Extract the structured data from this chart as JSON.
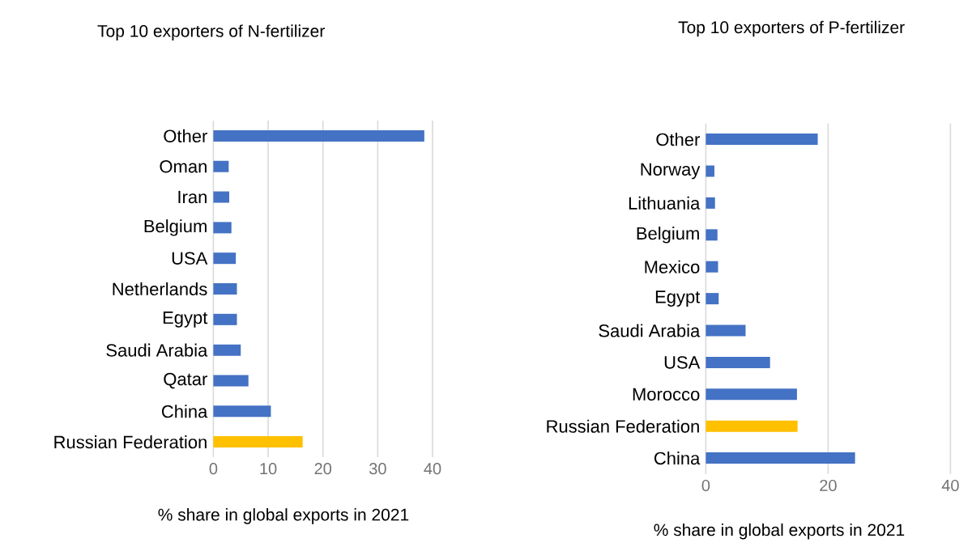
{
  "chart_data": [
    {
      "type": "bar",
      "orientation": "horizontal",
      "title": "Top 10 exporters of N-fertilizer",
      "xlabel": "% share in global exports in 2021",
      "categories": [
        "Other",
        "Oman",
        "Iran",
        "Belgium",
        "USA",
        "Netherlands",
        "Egypt",
        "Saudi Arabia",
        "Qatar",
        "China",
        "Russian Federation"
      ],
      "values": [
        38.5,
        2.8,
        2.9,
        3.3,
        4.1,
        4.3,
        4.3,
        5.0,
        6.4,
        10.5,
        16.3
      ],
      "colors": [
        "#4472c4",
        "#4472c4",
        "#4472c4",
        "#4472c4",
        "#4472c4",
        "#4472c4",
        "#4472c4",
        "#4472c4",
        "#4472c4",
        "#4472c4",
        "#ffc000"
      ],
      "xlim": [
        0,
        40
      ],
      "xticks": [
        0,
        10,
        20,
        30,
        40
      ],
      "grid": "x"
    },
    {
      "type": "bar",
      "orientation": "horizontal",
      "title": "Top 10 exporters of P-fertilizer",
      "xlabel": "% share in global exports in 2021",
      "categories": [
        "Other",
        "Norway",
        "Lithuania",
        "Belgium",
        "Mexico",
        "Egypt",
        "Saudi Arabia",
        "USA",
        "Morocco",
        "Russian Federation",
        "China"
      ],
      "values": [
        18.3,
        1.4,
        1.5,
        1.9,
        2.0,
        2.1,
        6.5,
        10.5,
        14.9,
        15.0,
        24.4
      ],
      "colors": [
        "#4472c4",
        "#4472c4",
        "#4472c4",
        "#4472c4",
        "#4472c4",
        "#4472c4",
        "#4472c4",
        "#4472c4",
        "#4472c4",
        "#ffc000",
        "#4472c4"
      ],
      "xlim": [
        0,
        40
      ],
      "xticks": [
        0,
        20,
        40
      ],
      "grid": "x"
    }
  ]
}
